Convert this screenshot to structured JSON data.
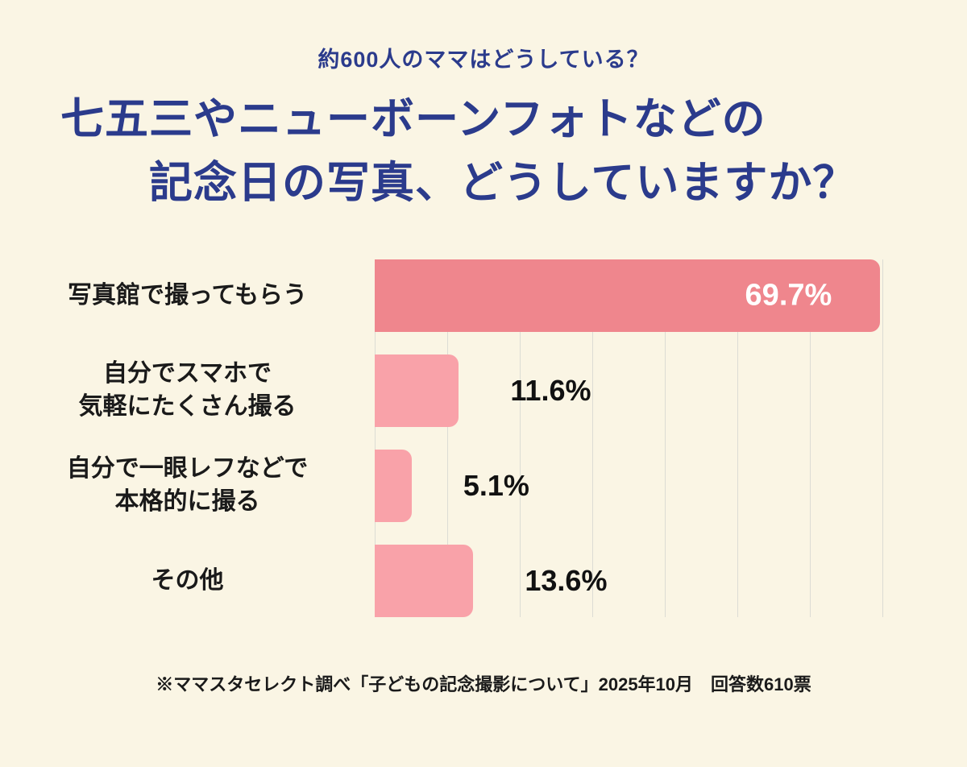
{
  "page": {
    "subtitle": "約600人のママはどうしている？",
    "title_line1": "七五三やニューボーンフォトなどの",
    "title_line2": "記念日の写真、どうしていますか？",
    "footnote": "※ママスタセレクト調べ「子どもの記念撮影について」2025年10月　回答数610票"
  },
  "colors": {
    "background": "#faf5e4",
    "title_navy": "#2b3b8c",
    "bar_primary": "#ef868d",
    "bar_secondary": "#f9a2a9",
    "gridline": "#dcdcd4",
    "label_black": "#1a1a1a",
    "percent_inside": "#ffffff"
  },
  "chart_data": {
    "type": "bar",
    "orientation": "horizontal",
    "title": "七五三やニューボーンフォトなどの記念日の写真、どうしていますか？",
    "subtitle": "約600人のママはどうしている？",
    "categories": [
      "写真館で撮ってもらう",
      "自分でスマホで\n気軽にたくさん撮る",
      "自分で一眼レフなどで\n本格的に撮る",
      "その他"
    ],
    "values": [
      69.7,
      11.6,
      5.1,
      13.6
    ],
    "value_labels": [
      "69.7%",
      "11.6%",
      "5.1%",
      "13.6%"
    ],
    "xlabel": "",
    "ylabel": "",
    "xlim": [
      0,
      70
    ],
    "gridline_step": 10,
    "grid": true,
    "legend": false,
    "source_note": "※ママスタセレクト調べ「子どもの記念撮影について」2025年10月　回答数610票"
  }
}
